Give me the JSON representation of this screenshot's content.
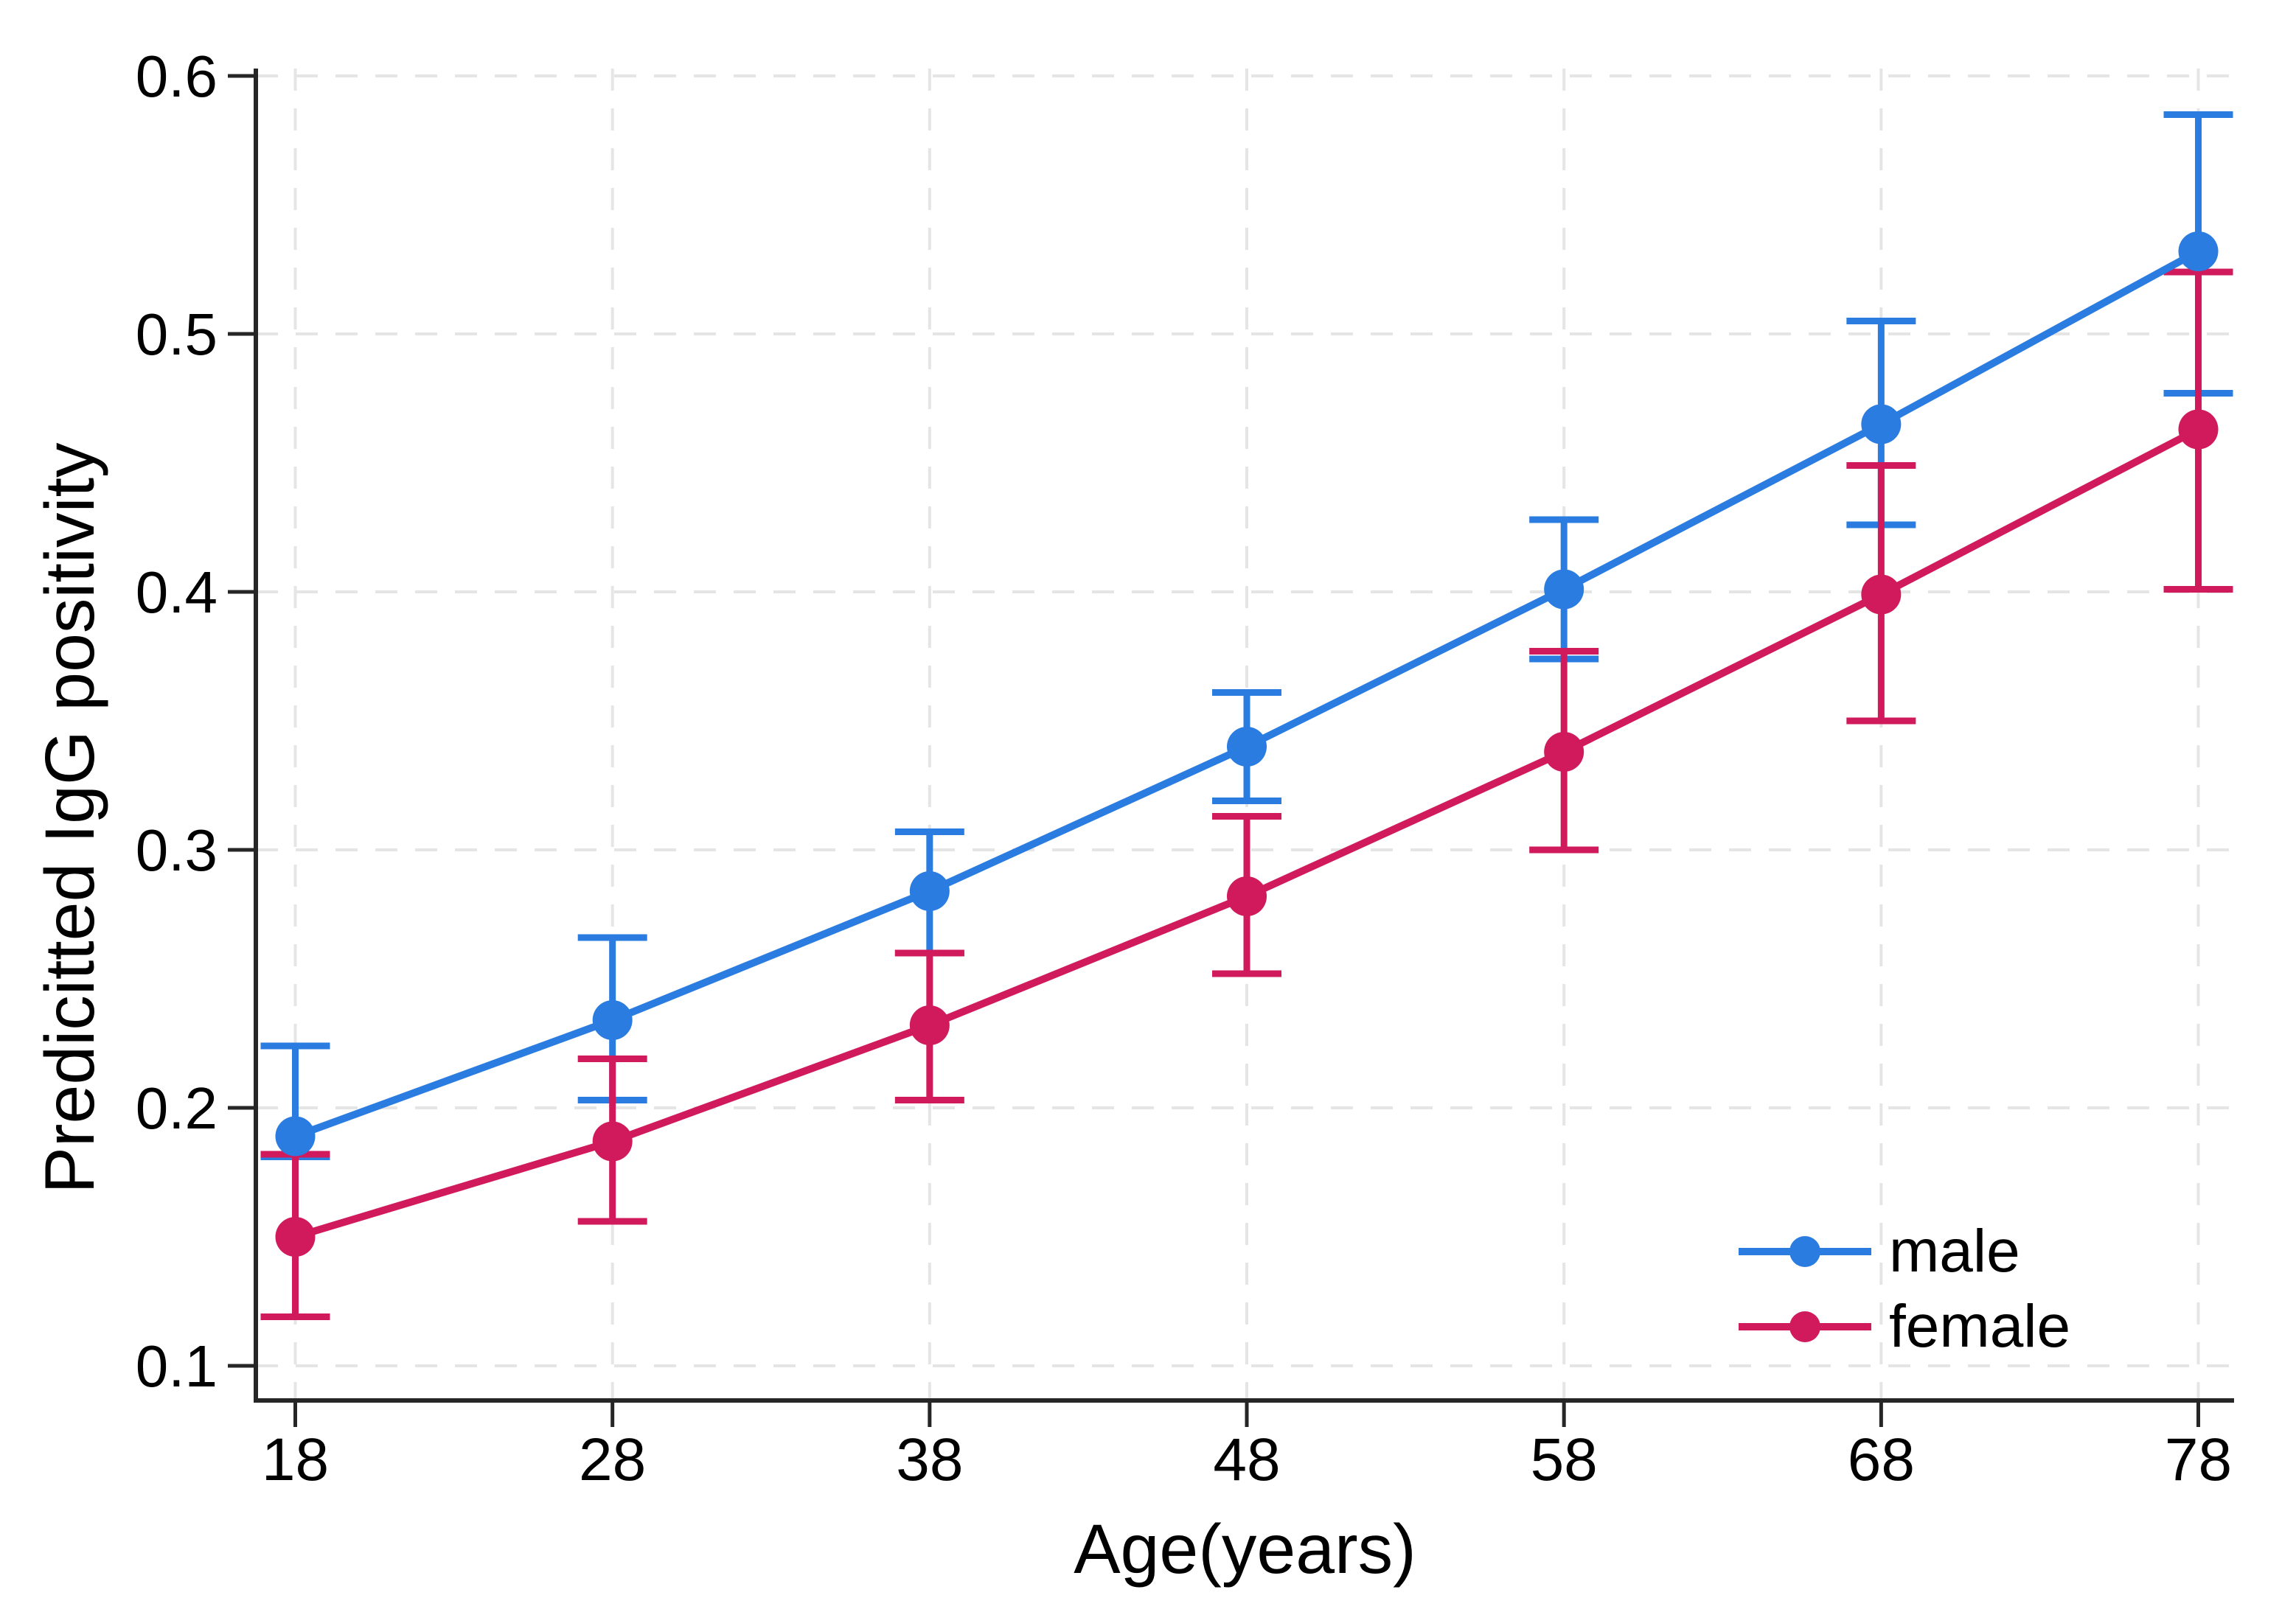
{
  "chart_data": {
    "type": "line",
    "title": "",
    "xlabel": "Age(years)",
    "ylabel": "Predicitted IgG positivity",
    "x": [
      18,
      28,
      38,
      48,
      58,
      68,
      78
    ],
    "xtick_labels": [
      "18",
      "28",
      "38",
      "48",
      "58",
      "68",
      "78"
    ],
    "yticks": [
      0.1,
      0.2,
      0.3,
      0.4,
      0.5,
      0.6
    ],
    "ytick_labels": [
      "0.1",
      "0.2",
      "0.3",
      "0.4",
      "0.5",
      "0.6"
    ],
    "xlim": [
      16.8,
      79.2
    ],
    "ylim": [
      0.087,
      0.617
    ],
    "grid": "light dashed horizontal and vertical gridlines at every tick",
    "legend_position": "inside lower right, no border",
    "error_bars": true,
    "series": [
      {
        "name": "male",
        "color": "#2b7ce0",
        "values": [
          0.189,
          0.234,
          0.284,
          0.34,
          0.401,
          0.465,
          0.532
        ],
        "ci_low": [
          0.181,
          0.203,
          0.26,
          0.319,
          0.374,
          0.426,
          0.477
        ],
        "ci_high": [
          0.224,
          0.266,
          0.307,
          0.361,
          0.428,
          0.505,
          0.585
        ]
      },
      {
        "name": "female",
        "color": "#d01a5c",
        "values": [
          0.15,
          0.187,
          0.232,
          0.282,
          0.338,
          0.399,
          0.463
        ],
        "ci_low": [
          0.119,
          0.156,
          0.203,
          0.252,
          0.3,
          0.35,
          0.401
        ],
        "ci_high": [
          0.182,
          0.219,
          0.26,
          0.313,
          0.377,
          0.449,
          0.524
        ]
      }
    ]
  },
  "colors": {
    "background": "#ffffff",
    "axis": "#262626",
    "grid": "#e5e5e5",
    "tick_text": "#000000"
  }
}
